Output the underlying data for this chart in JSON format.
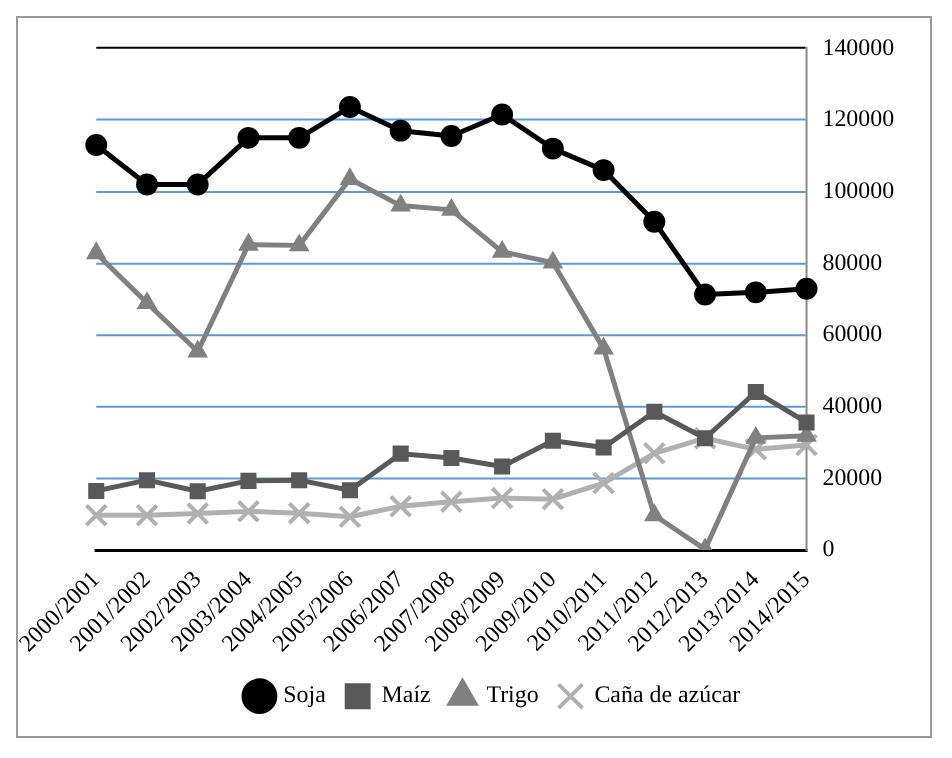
{
  "chart_data": {
    "type": "line",
    "categories": [
      "2000/2001",
      "2001/2002",
      "2002/2003",
      "2003/2004",
      "2004/2005",
      "2005/2006",
      "2006/2007",
      "2007/2008",
      "2008/2009",
      "2009/2010",
      "2010/2011",
      "2011/2012",
      "2012/2013",
      "2013/2014",
      "2014/2015"
    ],
    "series": [
      {
        "name": "Soja",
        "color": "#000000",
        "marker": "circle",
        "values": [
          113000,
          102000,
          102000,
          115000,
          115000,
          123600,
          117000,
          115500,
          121500,
          112000,
          106000,
          91600,
          71300,
          71900,
          72900
        ]
      },
      {
        "name": "Maíz",
        "color": "#595959",
        "marker": "square",
        "values": [
          16500,
          19500,
          16400,
          19300,
          19500,
          16700,
          26900,
          25700,
          23300,
          30500,
          28600,
          38600,
          31200,
          44100,
          35600
        ]
      },
      {
        "name": "Trigo",
        "color": "#808080",
        "marker": "triangle",
        "values": [
          82800,
          68900,
          55400,
          85200,
          85000,
          103500,
          96100,
          94900,
          83200,
          80200,
          56200,
          9700,
          200,
          31300,
          31900
        ]
      },
      {
        "name": "Caña de azúcar",
        "color": "#b0b0b0",
        "marker": "cross",
        "values": [
          9700,
          9700,
          10200,
          10800,
          10300,
          9300,
          12200,
          13500,
          14500,
          14200,
          18700,
          27000,
          31200,
          28100,
          29300
        ]
      }
    ],
    "ylim": [
      0,
      140000
    ],
    "yticks": [
      0,
      20000,
      40000,
      60000,
      80000,
      100000,
      120000,
      140000
    ],
    "grid": "y",
    "legend": "bottom",
    "line_style": "solid"
  }
}
